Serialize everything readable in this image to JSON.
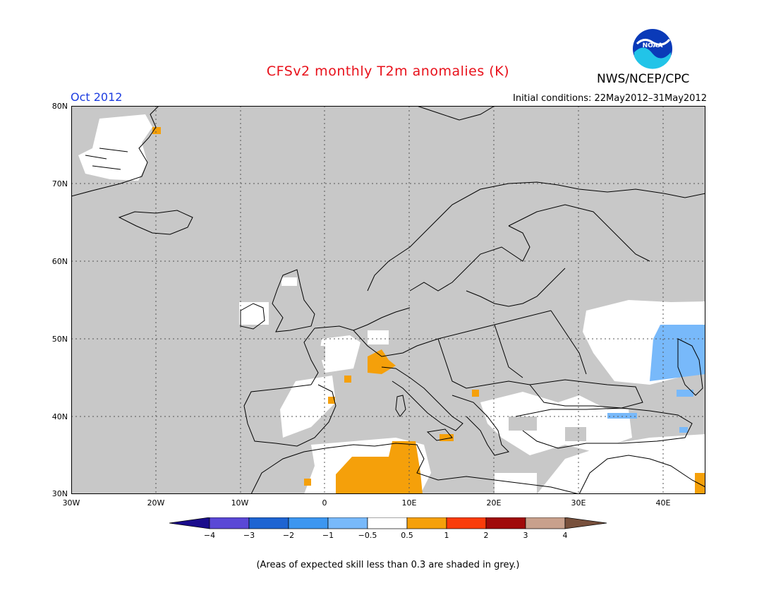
{
  "header": {
    "title": "CFSv2 monthly T2m anomalies (K)",
    "agency": "NWS/NCEP/CPC",
    "month": "Oct 2012",
    "initial_conditions": "Initial conditions: 22May2012–31May2012",
    "logo_text": "NOAA"
  },
  "map": {
    "lat_labels": [
      "80N",
      "70N",
      "60N",
      "50N",
      "40N",
      "30N"
    ],
    "lon_labels": [
      "30W",
      "20W",
      "10W",
      "0",
      "10E",
      "20E",
      "30E",
      "40E"
    ],
    "background_color": "#c8c8c8",
    "coastline_color": "#000000"
  },
  "colorbar": {
    "labels": [
      "−4",
      "−3",
      "−2",
      "−1",
      "−0.5",
      "0.5",
      "1",
      "2",
      "3",
      "4"
    ],
    "colors": [
      "#1a0c8c",
      "#5a48d6",
      "#1e64d2",
      "#3c96f0",
      "#78b9fa",
      "#ffffff",
      "#f5a00a",
      "#fa3c0a",
      "#a00a0a",
      "#c8a08c",
      "#78503c"
    ]
  },
  "footnote": "(Areas of expected skill less than 0.3 are shaded in grey.)"
}
